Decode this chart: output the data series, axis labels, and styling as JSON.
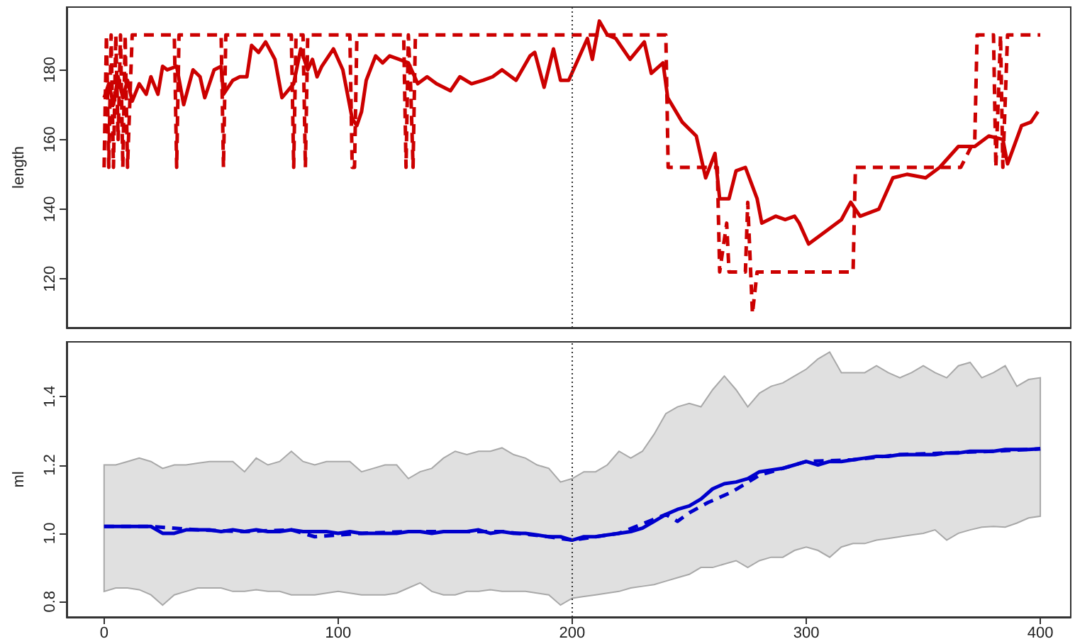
{
  "chart_data": [
    {
      "type": "line",
      "ylabel": "length",
      "xlim": [
        -16,
        413
      ],
      "ylim": [
        106,
        198
      ],
      "yticks": [
        120,
        140,
        160,
        180
      ],
      "tick_labels": "y",
      "ref_lines": [
        {
          "axis": "x",
          "value": 200,
          "color": "#333333",
          "line_style": "dotted"
        }
      ],
      "series": [
        {
          "color": "#cc0000",
          "line_style": "solid",
          "x": [
            0,
            2,
            4,
            6,
            8,
            10,
            12,
            15,
            18,
            20,
            23,
            25,
            27,
            31,
            34,
            38,
            41,
            43,
            47,
            50,
            51,
            55,
            58,
            61,
            63,
            66,
            69,
            73,
            76,
            81,
            84,
            87,
            89,
            91,
            93,
            98,
            102,
            106,
            108,
            110,
            112,
            116,
            119,
            122,
            126,
            130,
            134,
            138,
            142,
            148,
            152,
            157,
            162,
            166,
            170,
            176,
            182,
            184,
            188,
            192,
            195,
            198.5,
            202.5,
            206.5,
            208.6,
            211.6,
            215,
            218.6,
            224.7,
            230.8,
            233.8,
            238.8,
            240.8,
            247,
            253,
            257,
            261,
            263,
            267,
            270,
            274,
            279,
            281,
            287,
            291,
            295,
            297,
            301,
            305,
            309,
            315,
            319,
            323,
            327,
            331,
            337,
            343,
            351,
            357,
            365,
            372,
            378,
            384,
            386,
            392,
            396,
            399
          ],
          "values": [
            172,
            176,
            170,
            178,
            172,
            177,
            171,
            176,
            173,
            178,
            173,
            181,
            180,
            181,
            170,
            180,
            178,
            172,
            180,
            181,
            173,
            177,
            178,
            178,
            187,
            185,
            188,
            183,
            172,
            176,
            186,
            180,
            183,
            178,
            181,
            186,
            180,
            166,
            164,
            168,
            177,
            184,
            182,
            184,
            183,
            182,
            176,
            178,
            176,
            174,
            178,
            176,
            177,
            178,
            180,
            177,
            184,
            185,
            175,
            186,
            177,
            177,
            183,
            189,
            183,
            194,
            190,
            189,
            183,
            188,
            179,
            182,
            172,
            165,
            161,
            149,
            156,
            143,
            143,
            151,
            152,
            143,
            136,
            138,
            137,
            138,
            136,
            130,
            132,
            134,
            137,
            142,
            138,
            139,
            140,
            149,
            150,
            149,
            152,
            158,
            158,
            161,
            160,
            153,
            164,
            165,
            168
          ]
        },
        {
          "color": "#cc0000",
          "line_style": "dashed",
          "x": [
            0,
            1,
            2,
            3,
            4,
            5,
            6,
            7,
            8,
            9,
            10,
            12,
            16,
            30,
            31,
            32,
            50,
            51,
            52,
            80,
            81,
            82,
            85,
            86,
            87,
            105,
            106,
            107,
            108,
            128,
            129,
            130,
            131,
            132,
            133,
            240,
            241,
            252,
            262,
            263,
            266,
            267,
            274,
            275,
            277,
            279,
            320,
            321,
            358,
            366,
            372,
            373,
            380,
            381,
            383,
            384,
            386,
            387,
            400
          ],
          "values": [
            152,
            190,
            152,
            190,
            152,
            190,
            160,
            190,
            152,
            190,
            152,
            190,
            190,
            190,
            152,
            190,
            190,
            152,
            190,
            190,
            152,
            190,
            190,
            152,
            190,
            190,
            152,
            152,
            190,
            190,
            152,
            190,
            175,
            152,
            190,
            190,
            152,
            152,
            152,
            122,
            136,
            122,
            122,
            142,
            110,
            122,
            122,
            152,
            152,
            152,
            160,
            190,
            190,
            152,
            190,
            152,
            190,
            190,
            190
          ]
        }
      ]
    },
    {
      "type": "line",
      "ylabel": "ml",
      "xlim": [
        -16,
        413
      ],
      "ylim": [
        0.755,
        1.56
      ],
      "xticks": [
        0,
        100,
        200,
        300,
        400
      ],
      "yticks": [
        0.8,
        {
          "value": 1,
          "label": "1.0"
        },
        1.2,
        1.4
      ],
      "ref_lines": [
        {
          "axis": "x",
          "value": 200,
          "color": "#333333",
          "line_style": "dotted"
        }
      ],
      "series": [
        {
          "color": "#0000cc",
          "line_style": "solid",
          "x": [
            0,
            5,
            10,
            15,
            20,
            25,
            30,
            35,
            40,
            45,
            50,
            55,
            60,
            65,
            70,
            75,
            80,
            85,
            90,
            95,
            100,
            105,
            110,
            115,
            120,
            125,
            130,
            135,
            140,
            145,
            150,
            155,
            160,
            165,
            170,
            175,
            180,
            185,
            190,
            195,
            200,
            205,
            210,
            215,
            220,
            225,
            230,
            235,
            240,
            245,
            250,
            255,
            260,
            265,
            270,
            275,
            280,
            285,
            290,
            295,
            300,
            305,
            310,
            315,
            320,
            325,
            330,
            335,
            340,
            345,
            350,
            355,
            360,
            365,
            370,
            375,
            380,
            385,
            390,
            395,
            400
          ],
          "values": [
            1.02,
            1.02,
            1.02,
            1.02,
            1.02,
            1.0,
            1.0,
            1.01,
            1.01,
            1.01,
            1.005,
            1.01,
            1.005,
            1.01,
            1.005,
            1.005,
            1.01,
            1.005,
            1.005,
            1.005,
            1.0,
            1.005,
            1.0,
            1.0,
            1.0,
            1.0,
            1.005,
            1.005,
            1.0,
            1.005,
            1.005,
            1.005,
            1.01,
            1.0,
            1.005,
            1.0,
            1.0,
            0.995,
            0.99,
            0.99,
            0.98,
            0.99,
            0.99,
            0.995,
            1.0,
            1.005,
            1.015,
            1.035,
            1.055,
            1.07,
            1.08,
            1.1,
            1.13,
            1.145,
            1.15,
            1.16,
            1.18,
            1.185,
            1.19,
            1.2,
            1.21,
            1.2,
            1.21,
            1.21,
            1.215,
            1.22,
            1.225,
            1.225,
            1.23,
            1.23,
            1.23,
            1.23,
            1.235,
            1.235,
            1.24,
            1.24,
            1.24,
            1.245,
            1.245,
            1.245,
            1.247
          ],
          "lower": [
            0.83,
            0.84,
            0.84,
            0.835,
            0.82,
            0.79,
            0.82,
            0.83,
            0.84,
            0.84,
            0.84,
            0.83,
            0.83,
            0.835,
            0.83,
            0.83,
            0.82,
            0.82,
            0.82,
            0.825,
            0.83,
            0.825,
            0.82,
            0.82,
            0.82,
            0.825,
            0.84,
            0.855,
            0.83,
            0.82,
            0.82,
            0.83,
            0.83,
            0.835,
            0.83,
            0.83,
            0.83,
            0.825,
            0.82,
            0.79,
            0.81,
            0.815,
            0.82,
            0.825,
            0.83,
            0.84,
            0.845,
            0.85,
            0.86,
            0.87,
            0.88,
            0.9,
            0.9,
            0.91,
            0.92,
            0.9,
            0.92,
            0.93,
            0.93,
            0.95,
            0.96,
            0.95,
            0.93,
            0.96,
            0.97,
            0.97,
            0.98,
            0.985,
            0.99,
            0.995,
            1.0,
            1.01,
            0.98,
            1.0,
            1.01,
            1.018,
            1.02,
            1.018,
            1.03,
            1.045,
            1.05
          ],
          "upper": [
            1.2,
            1.2,
            1.21,
            1.22,
            1.21,
            1.19,
            1.2,
            1.2,
            1.205,
            1.21,
            1.21,
            1.21,
            1.18,
            1.22,
            1.2,
            1.21,
            1.24,
            1.21,
            1.2,
            1.21,
            1.21,
            1.21,
            1.18,
            1.19,
            1.2,
            1.2,
            1.16,
            1.18,
            1.19,
            1.22,
            1.24,
            1.23,
            1.24,
            1.24,
            1.25,
            1.23,
            1.22,
            1.2,
            1.19,
            1.15,
            1.16,
            1.18,
            1.18,
            1.2,
            1.24,
            1.22,
            1.24,
            1.29,
            1.35,
            1.37,
            1.38,
            1.37,
            1.42,
            1.46,
            1.42,
            1.37,
            1.41,
            1.43,
            1.44,
            1.46,
            1.48,
            1.51,
            1.53,
            1.47,
            1.47,
            1.47,
            1.49,
            1.47,
            1.455,
            1.47,
            1.49,
            1.47,
            1.455,
            1.49,
            1.5,
            1.455,
            1.47,
            1.49,
            1.43,
            1.45,
            1.455
          ]
        },
        {
          "color": "#0000cc",
          "line_style": "dashed",
          "x": [
            0,
            20,
            40,
            60,
            80,
            85,
            90,
            110,
            130,
            150,
            170,
            190,
            200,
            220,
            240,
            245,
            250,
            258,
            268,
            280,
            300,
            320,
            340,
            360,
            380,
            400
          ],
          "values": [
            1.02,
            1.02,
            1.01,
            1.005,
            1.01,
            1.0,
            0.99,
            1.0,
            1.005,
            1.005,
            1.005,
            0.99,
            0.98,
            1.0,
            1.055,
            1.035,
            1.06,
            1.09,
            1.12,
            1.17,
            1.21,
            1.215,
            1.23,
            1.235,
            1.24,
            1.247
          ]
        }
      ]
    }
  ]
}
